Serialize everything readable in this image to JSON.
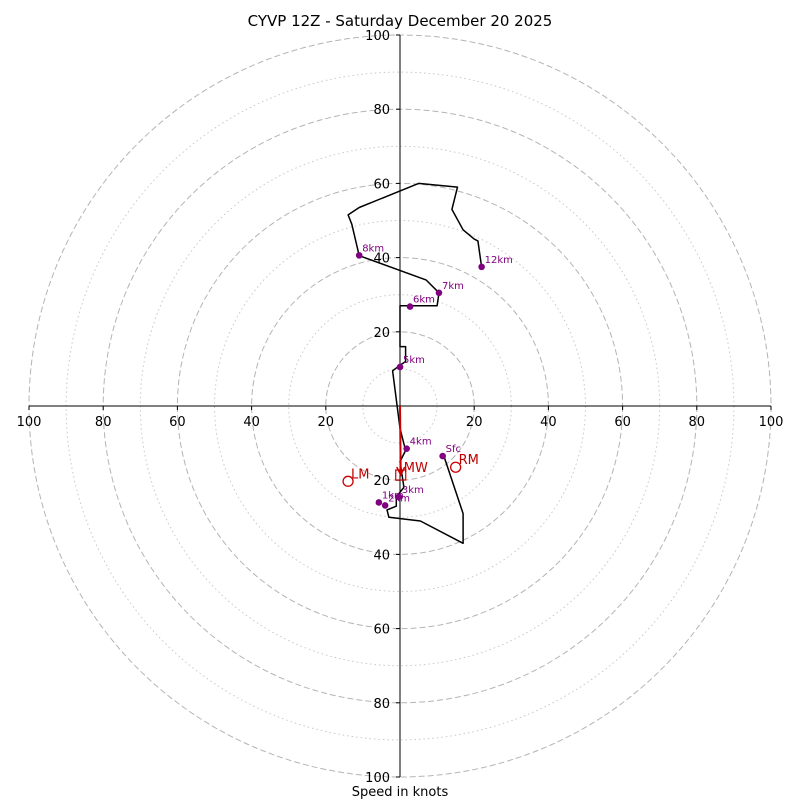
{
  "chart_data": {
    "type": "hodograph",
    "title": "CYVP 12Z - Saturday December 20 2025",
    "xlabel": "Speed in knots",
    "units": "knots",
    "max_speed": 100,
    "ring_major": [
      20,
      40,
      60,
      80,
      100
    ],
    "ring_minor": [
      10,
      30,
      50,
      70,
      90
    ],
    "axis_tick_labels": [
      "100",
      "80",
      "60",
      "40",
      "20",
      "20",
      "40",
      "60",
      "80",
      "100"
    ],
    "y_tick_labels_up": [
      "20",
      "40",
      "60",
      "80",
      "100"
    ],
    "y_tick_labels_down": [
      "20",
      "40",
      "60",
      "80",
      "100"
    ],
    "trace": [
      [
        12,
        -14
      ],
      [
        17,
        -29
      ],
      [
        17,
        -37
      ],
      [
        5.5,
        -31
      ],
      [
        -3,
        -30
      ],
      [
        -3.5,
        -28
      ],
      [
        -1,
        -27
      ],
      [
        -1,
        -24.5
      ],
      [
        1,
        -22
      ],
      [
        1,
        -21.5
      ],
      [
        0,
        -15
      ],
      [
        1.5,
        -12
      ],
      [
        0,
        -6
      ],
      [
        -2,
        9.5
      ],
      [
        0,
        11
      ],
      [
        1.5,
        12
      ],
      [
        1.5,
        16
      ],
      [
        0,
        16
      ],
      [
        0,
        27
      ],
      [
        10,
        27
      ],
      [
        10.5,
        30.5
      ],
      [
        7,
        34
      ],
      [
        -11,
        40.5
      ],
      [
        -13,
        49
      ],
      [
        -14,
        51.5
      ],
      [
        -11,
        53.5
      ],
      [
        5,
        60
      ],
      [
        15.5,
        59
      ],
      [
        14,
        53
      ],
      [
        17,
        47.5
      ],
      [
        20,
        45
      ],
      [
        21,
        44.5
      ],
      [
        22,
        37.5
      ]
    ],
    "height_markers": [
      {
        "label": "Sfc",
        "u": 11.5,
        "v": -13.5
      },
      {
        "label": "1km",
        "u": -5.7,
        "v": -26
      },
      {
        "label": "2km",
        "u": -4,
        "v": -26.8
      },
      {
        "label": "3km",
        "u": -0.3,
        "v": -24.5
      },
      {
        "label": "4km",
        "u": 1.8,
        "v": -11.5
      },
      {
        "label": "5km",
        "u": 0,
        "v": 10.5
      },
      {
        "label": "6km",
        "u": 2.7,
        "v": 26.8
      },
      {
        "label": "7km",
        "u": 10.5,
        "v": 30.5
      },
      {
        "label": "8km",
        "u": -11,
        "v": 40.6
      },
      {
        "label": "12km",
        "u": 22,
        "v": 37.5
      }
    ],
    "mean_wind": {
      "label": "MW",
      "u": 0.2,
      "v": -18.6
    },
    "right_mover": {
      "label": "RM",
      "u": 15,
      "v": -16.5
    },
    "left_mover": {
      "label": "LM",
      "u": -14,
      "v": -20.3
    },
    "shear_vector": {
      "from": [
        0,
        0
      ],
      "to": [
        0.2,
        -18.6
      ]
    }
  }
}
